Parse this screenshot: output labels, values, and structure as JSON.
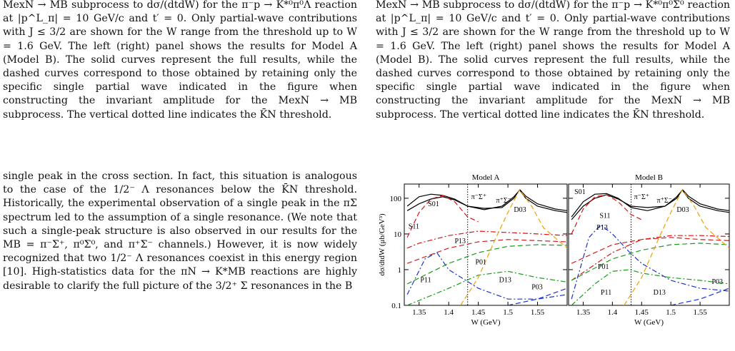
{
  "left_caption": "MexN → MB subprocess to dσ/(dtdW) for the π⁻p → K*⁰π⁰Λ reaction at |p^L_π| = 10 GeV/c and t′ = 0. Only partial-wave contributions with J ≤ 3/2 are shown for the W range from the threshold up to W = 1.6 GeV. The left (right) panel shows the results for Model A (Model B). The solid curves represent the full results, while the dashed curves correspond to those obtained by retaining only the specific single partial wave indicated in the figure when constructing the invariant amplitude for the MexN → MB subprocess. The vertical dotted line indicates the K̄N threshold.",
  "right_caption": "MexN → MB subprocess to dσ/(dtdW) for the π⁻p → K*⁰π⁰Σ⁰ reaction at |p^L_π| = 10 GeV/c and t′ = 0. Only partial-wave contributions with J ≤ 3/2 are shown for the W range from the threshold up to W = 1.6 GeV. The left (right) panel shows the results for Model A (Model B). The solid curves represent the full results, while the dashed curves correspond to those obtained by retaining only the specific single partial wave indicated in the figure when constructing the invariant amplitude for the MexN → MB subprocess. The vertical dotted line indicates the K̄N threshold.",
  "body_text": "single peak in the cross section. In fact, this situation is analogous to the case of the 1/2⁻ Λ resonances below the K̄N threshold. Historically, the experimental observation of a single peak in the πΣ spectrum led to the assumption of a single resonance. (We note that such a single-peak structure is also observed in our results for the MB = π⁻Σ⁺, π⁰Σ⁰, and π⁺Σ⁻ channels.) However, it is now widely recognized that two 1/2⁻ Λ resonances coexist in this energy region [10]. High-statistics data for the πN → K*MB reactions are highly desirable to clarify the full picture of the 3/2⁺ Σ resonances in the B",
  "figure": {
    "ylabel": "dσ/dtdW (μb/GeV³)",
    "yticks": [
      "100",
      "10",
      "1",
      "0.1"
    ],
    "xticks": [
      "1.35",
      "1.4",
      "1.45",
      "1.5",
      "1.55"
    ],
    "xlabel": "W (GeV)",
    "panels": [
      {
        "title": "Model A",
        "labels": {
          "s01": "S01",
          "s11": "S11",
          "p13": "P13",
          "p01": "P01",
          "p11": "P11",
          "d13": "D13",
          "p03": "P03",
          "d03": "D03",
          "pi_sigma_plus": "π⁻Σ⁺",
          "pi_sigma_minus": "π⁺Σ⁻"
        }
      },
      {
        "title": "Model B",
        "labels": {
          "s01": "S01",
          "s11": "S11",
          "p13": "P13",
          "p01": "P01",
          "p11": "P11",
          "d13": "D13",
          "p03": "P03",
          "d03": "D03",
          "pi_sigma_plus": "π⁻Σ⁺",
          "pi_sigma_minus": "π⁺Σ⁻"
        }
      }
    ]
  },
  "chart_data": [
    {
      "type": "line",
      "title": "Model A",
      "xlabel": "W (GeV)",
      "ylabel": "dσ/dtdW (μb/GeV³)",
      "xlim": [
        1.325,
        1.6
      ],
      "ylim": [
        0.1,
        250
      ],
      "yscale": "log",
      "threshold_x": 1.432,
      "series": [
        {
          "name": "π⁻Σ⁺",
          "style": "solid",
          "color": "#000000",
          "x": [
            1.33,
            1.35,
            1.37,
            1.39,
            1.41,
            1.432,
            1.46,
            1.49,
            1.51,
            1.52,
            1.53,
            1.55,
            1.58,
            1.6
          ],
          "y": [
            60,
            110,
            130,
            120,
            95,
            60,
            48,
            60,
            110,
            170,
            100,
            60,
            45,
            40
          ]
        },
        {
          "name": "π⁺Σ⁻",
          "style": "solid",
          "color": "#000000",
          "x": [
            1.33,
            1.35,
            1.37,
            1.39,
            1.41,
            1.432,
            1.46,
            1.49,
            1.51,
            1.52,
            1.53,
            1.55,
            1.58,
            1.6
          ],
          "y": [
            45,
            70,
            95,
            110,
            90,
            60,
            52,
            55,
            100,
            175,
            115,
            70,
            50,
            45
          ]
        },
        {
          "name": "S01",
          "style": "dashed",
          "color": "#e01010",
          "x": [
            1.33,
            1.35,
            1.37,
            1.39,
            1.41,
            1.432,
            1.45
          ],
          "y": [
            8,
            40,
            95,
            120,
            80,
            30,
            22
          ]
        },
        {
          "name": "S11",
          "style": "dashdot",
          "color": "#e01010",
          "x": [
            1.33,
            1.35,
            1.4,
            1.45,
            1.5,
            1.55,
            1.6
          ],
          "y": [
            4,
            5.5,
            9,
            12,
            11,
            10,
            9
          ]
        },
        {
          "name": "P13",
          "style": "dashed",
          "color": "#d02020",
          "x": [
            1.33,
            1.4,
            1.45,
            1.5,
            1.55,
            1.6
          ],
          "y": [
            1.5,
            4,
            6,
            7,
            6.5,
            6
          ]
        },
        {
          "name": "P01",
          "style": "dashed",
          "color": "#1a9a1a",
          "x": [
            1.33,
            1.4,
            1.45,
            1.5,
            1.55,
            1.6
          ],
          "y": [
            0.4,
            1.5,
            3,
            4.5,
            5,
            4.8
          ]
        },
        {
          "name": "P11",
          "style": "dashdot",
          "color": "#1a33cc",
          "x": [
            1.33,
            1.36,
            1.38,
            1.4,
            1.45,
            1.5,
            1.55,
            1.6
          ],
          "y": [
            0.2,
            2,
            3,
            1,
            0.3,
            0.15,
            0.15,
            0.2
          ]
        },
        {
          "name": "D13",
          "style": "dashdot",
          "color": "#1a9a1a",
          "x": [
            1.33,
            1.4,
            1.45,
            1.5,
            1.55,
            1.6
          ],
          "y": [
            0.1,
            0.3,
            0.7,
            0.9,
            0.6,
            0.45
          ]
        },
        {
          "name": "D03",
          "style": "dashed",
          "color": "#f0a000",
          "x": [
            1.42,
            1.45,
            1.48,
            1.5,
            1.52,
            1.54,
            1.56,
            1.6
          ],
          "y": [
            0.1,
            0.6,
            8,
            40,
            175,
            60,
            15,
            4
          ]
        },
        {
          "name": "P03",
          "style": "dashed",
          "color": "#1a33cc",
          "x": [
            1.5,
            1.55,
            1.6
          ],
          "y": [
            0.1,
            0.15,
            0.3
          ]
        }
      ]
    },
    {
      "type": "line",
      "title": "Model B",
      "xlabel": "W (GeV)",
      "ylabel": "dσ/dtdW (μb/GeV³)",
      "xlim": [
        1.325,
        1.6
      ],
      "ylim": [
        0.1,
        250
      ],
      "yscale": "log",
      "threshold_x": 1.432,
      "series": [
        {
          "name": "π⁻Σ⁺",
          "style": "solid",
          "color": "#000000",
          "x": [
            1.33,
            1.35,
            1.37,
            1.39,
            1.41,
            1.432,
            1.46,
            1.49,
            1.51,
            1.52,
            1.53,
            1.55,
            1.58,
            1.6
          ],
          "y": [
            30,
            80,
            130,
            135,
            100,
            55,
            45,
            60,
            110,
            170,
            100,
            60,
            45,
            40
          ]
        },
        {
          "name": "π⁺Σ⁻",
          "style": "solid",
          "color": "#000000",
          "x": [
            1.33,
            1.35,
            1.37,
            1.39,
            1.41,
            1.432,
            1.46,
            1.49,
            1.51,
            1.52,
            1.53,
            1.55,
            1.58,
            1.6
          ],
          "y": [
            25,
            60,
            100,
            125,
            95,
            60,
            55,
            60,
            100,
            175,
            115,
            70,
            50,
            45
          ]
        },
        {
          "name": "S01",
          "style": "dashed",
          "color": "#e01010",
          "x": [
            1.33,
            1.35,
            1.37,
            1.39,
            1.41,
            1.432,
            1.45
          ],
          "y": [
            10,
            50,
            110,
            125,
            80,
            35,
            25
          ]
        },
        {
          "name": "S11",
          "style": "dashdot",
          "color": "#e01010",
          "x": [
            1.33,
            1.4,
            1.45,
            1.5,
            1.55,
            1.6
          ],
          "y": [
            0.5,
            3,
            7,
            9,
            9,
            8.5
          ]
        },
        {
          "name": "P13",
          "style": "dashdot",
          "color": "#1a33cc",
          "x": [
            1.33,
            1.36,
            1.38,
            1.4,
            1.43,
            1.45,
            1.5,
            1.55,
            1.6
          ],
          "y": [
            0.15,
            8,
            18,
            10,
            3,
            1.5,
            0.5,
            0.3,
            0.25
          ]
        },
        {
          "name": "P01",
          "style": "dashed",
          "color": "#1a9a1a",
          "x": [
            1.33,
            1.4,
            1.45,
            1.5,
            1.55,
            1.6
          ],
          "y": [
            0.5,
            2,
            3.5,
            5,
            5.5,
            5
          ]
        },
        {
          "name": "P11",
          "style": "dashdot",
          "color": "#1a9a1a",
          "x": [
            1.33,
            1.37,
            1.4,
            1.43,
            1.45,
            1.5,
            1.55,
            1.6
          ],
          "y": [
            0.1,
            0.4,
            0.9,
            1,
            0.8,
            0.6,
            0.5,
            0.4
          ]
        },
        {
          "name": "D13",
          "style": "dashed",
          "color": "#f0a000",
          "x": [
            1.42,
            1.45,
            1.48,
            1.5,
            1.52,
            1.54,
            1.56,
            1.6
          ],
          "y": [
            0.1,
            0.6,
            8,
            40,
            175,
            60,
            15,
            4
          ]
        },
        {
          "name": "P03",
          "style": "dashed",
          "color": "#1a33cc",
          "x": [
            1.5,
            1.55,
            1.6
          ],
          "y": [
            0.1,
            0.15,
            0.3
          ]
        },
        {
          "name": "D03",
          "style": "dashed",
          "color": "#d02020",
          "x": [
            1.33,
            1.4,
            1.45,
            1.5,
            1.55,
            1.6
          ],
          "y": [
            1.5,
            5,
            7,
            8,
            7,
            6.5
          ]
        }
      ]
    }
  ]
}
